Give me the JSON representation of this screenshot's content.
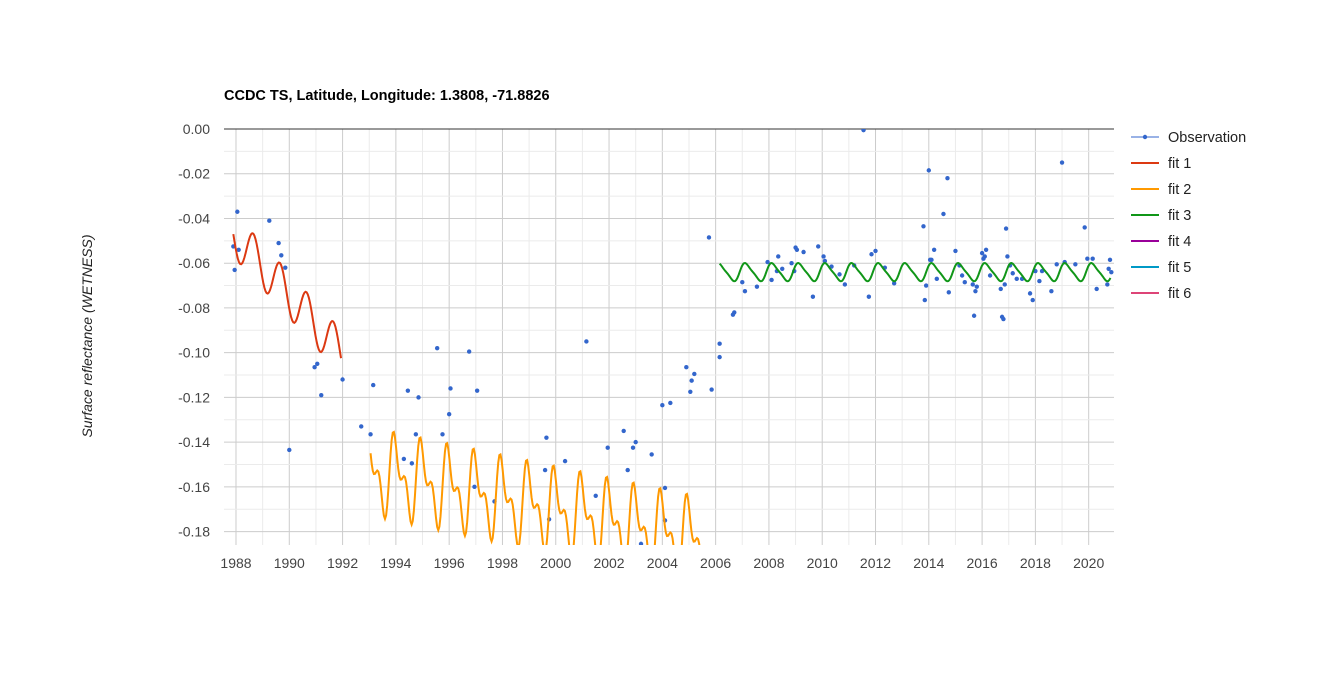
{
  "chart_data": {
    "type": "line",
    "title": "CCDC TS, Latitude, Longitude: 1.3808, -71.8826",
    "xlabel": "",
    "ylabel": "Surface reflectance (WETNESS)",
    "xlim": [
      1987.55,
      2020.95
    ],
    "ylim": [
      -0.186,
      0.0
    ],
    "x_ticks": [
      "1988",
      "1990",
      "1992",
      "1994",
      "1996",
      "1998",
      "2000",
      "2002",
      "2004",
      "2006",
      "2008",
      "2010",
      "2012",
      "2014",
      "2016",
      "2018",
      "2020"
    ],
    "y_ticks": [
      "0.00",
      "-0.02",
      "-0.04",
      "-0.06",
      "-0.08",
      "-0.10",
      "-0.12",
      "-0.14",
      "-0.16",
      "-0.18"
    ],
    "grid": true,
    "legend_position": "right",
    "series": [
      {
        "name": "Observation",
        "kind": "points",
        "color": "#3366cc",
        "points": [
          [
            1987.9,
            -0.0525
          ],
          [
            1987.95,
            -0.063
          ],
          [
            1988.05,
            -0.037
          ],
          [
            1988.1,
            -0.054
          ],
          [
            1989.25,
            -0.041
          ],
          [
            1989.6,
            -0.051
          ],
          [
            1989.7,
            -0.0565
          ],
          [
            1989.85,
            -0.062
          ],
          [
            1990.0,
            -0.1435
          ],
          [
            1990.95,
            -0.1065
          ],
          [
            1991.05,
            -0.105
          ],
          [
            1991.2,
            -0.119
          ],
          [
            1992.0,
            -0.112
          ],
          [
            1992.7,
            -0.133
          ],
          [
            1993.05,
            -0.1365
          ],
          [
            1993.15,
            -0.1145
          ],
          [
            1994.3,
            -0.1475
          ],
          [
            1994.45,
            -0.117
          ],
          [
            1994.6,
            -0.1495
          ],
          [
            1994.75,
            -0.1365
          ],
          [
            1994.85,
            -0.12
          ],
          [
            1995.55,
            -0.098
          ],
          [
            1995.75,
            -0.1365
          ],
          [
            1996.0,
            -0.1275
          ],
          [
            1996.05,
            -0.116
          ],
          [
            1996.75,
            -0.0995
          ],
          [
            1997.05,
            -0.117
          ],
          [
            1996.95,
            -0.16
          ],
          [
            1997.7,
            -0.1665
          ],
          [
            1999.65,
            -0.138
          ],
          [
            1999.6,
            -0.1525
          ],
          [
            1999.75,
            -0.1745
          ],
          [
            2000.35,
            -0.1485
          ],
          [
            2001.15,
            -0.095
          ],
          [
            2001.5,
            -0.164
          ],
          [
            2001.95,
            -0.1425
          ],
          [
            2002.55,
            -0.135
          ],
          [
            2002.7,
            -0.1525
          ],
          [
            2002.9,
            -0.1425
          ],
          [
            2003.0,
            -0.14
          ],
          [
            2003.2,
            -0.1855
          ],
          [
            2003.6,
            -0.1455
          ],
          [
            2004.0,
            -0.1235
          ],
          [
            2004.1,
            -0.1605
          ],
          [
            2004.1,
            -0.175
          ],
          [
            2004.3,
            -0.1225
          ],
          [
            2004.9,
            -0.1065
          ],
          [
            2005.05,
            -0.1175
          ],
          [
            2005.1,
            -0.1125
          ],
          [
            2005.2,
            -0.1095
          ],
          [
            2005.75,
            -0.0485
          ],
          [
            2005.85,
            -0.1165
          ],
          [
            2006.15,
            -0.096
          ],
          [
            2006.15,
            -0.102
          ],
          [
            2006.65,
            -0.083
          ],
          [
            2006.7,
            -0.082
          ],
          [
            2007.0,
            -0.0685
          ],
          [
            2007.1,
            -0.0725
          ],
          [
            2007.55,
            -0.0705
          ],
          [
            2007.95,
            -0.0595
          ],
          [
            2008.1,
            -0.0675
          ],
          [
            2008.3,
            -0.0635
          ],
          [
            2008.35,
            -0.057
          ],
          [
            2008.5,
            -0.0625
          ],
          [
            2008.85,
            -0.06
          ],
          [
            2008.95,
            -0.0635
          ],
          [
            2009.0,
            -0.053
          ],
          [
            2009.05,
            -0.054
          ],
          [
            2009.3,
            -0.055
          ],
          [
            2009.65,
            -0.075
          ],
          [
            2009.85,
            -0.0525
          ],
          [
            2010.05,
            -0.057
          ],
          [
            2010.1,
            -0.059
          ],
          [
            2010.35,
            -0.0615
          ],
          [
            2010.65,
            -0.065
          ],
          [
            2010.85,
            -0.0695
          ],
          [
            2011.2,
            -0.061
          ],
          [
            2011.55,
            -0.0005
          ],
          [
            2011.75,
            -0.075
          ],
          [
            2011.85,
            -0.056
          ],
          [
            2012.0,
            -0.0545
          ],
          [
            2012.35,
            -0.062
          ],
          [
            2012.7,
            -0.069
          ],
          [
            2013.8,
            -0.0435
          ],
          [
            2013.85,
            -0.0765
          ],
          [
            2013.9,
            -0.07
          ],
          [
            2014.0,
            -0.0185
          ],
          [
            2014.05,
            -0.0585
          ],
          [
            2014.1,
            -0.0585
          ],
          [
            2014.2,
            -0.054
          ],
          [
            2014.3,
            -0.067
          ],
          [
            2014.55,
            -0.038
          ],
          [
            2014.7,
            -0.022
          ],
          [
            2014.75,
            -0.073
          ],
          [
            2015.0,
            -0.0545
          ],
          [
            2015.15,
            -0.061
          ],
          [
            2015.25,
            -0.0655
          ],
          [
            2015.35,
            -0.0685
          ],
          [
            2015.65,
            -0.0695
          ],
          [
            2015.7,
            -0.0835
          ],
          [
            2015.75,
            -0.0725
          ],
          [
            2015.8,
            -0.0705
          ],
          [
            2016.0,
            -0.0555
          ],
          [
            2016.05,
            -0.058
          ],
          [
            2016.1,
            -0.057
          ],
          [
            2016.15,
            -0.054
          ],
          [
            2016.3,
            -0.0655
          ],
          [
            2016.7,
            -0.0715
          ],
          [
            2016.75,
            -0.084
          ],
          [
            2016.8,
            -0.085
          ],
          [
            2016.85,
            -0.0695
          ],
          [
            2016.9,
            -0.0445
          ],
          [
            2016.95,
            -0.057
          ],
          [
            2017.05,
            -0.061
          ],
          [
            2017.15,
            -0.0645
          ],
          [
            2017.3,
            -0.067
          ],
          [
            2017.5,
            -0.067
          ],
          [
            2017.8,
            -0.0735
          ],
          [
            2017.9,
            -0.0765
          ],
          [
            2018.0,
            -0.0635
          ],
          [
            2018.15,
            -0.068
          ],
          [
            2018.25,
            -0.0635
          ],
          [
            2018.6,
            -0.0725
          ],
          [
            2018.8,
            -0.0605
          ],
          [
            2019.0,
            -0.015
          ],
          [
            2019.1,
            -0.0595
          ],
          [
            2019.5,
            -0.0605
          ],
          [
            2019.85,
            -0.044
          ],
          [
            2019.95,
            -0.058
          ],
          [
            2020.15,
            -0.058
          ],
          [
            2020.3,
            -0.0715
          ],
          [
            2020.7,
            -0.0695
          ],
          [
            2020.75,
            -0.0625
          ],
          [
            2020.8,
            -0.0585
          ],
          [
            2020.85,
            -0.064
          ]
        ]
      },
      {
        "name": "fit 1",
        "kind": "harmonic",
        "color": "#dc3912",
        "x_start": 1987.9,
        "x_end": 1991.95,
        "trend_start": -0.047,
        "trend_end": -0.1,
        "amplitude": 0.01,
        "phase": 0.6
      },
      {
        "name": "fit 2",
        "kind": "harmonic",
        "color": "#ff9900",
        "x_start": 1993.05,
        "x_end": 2005.75,
        "trend_start": -0.153,
        "trend_end": -0.185,
        "amplitude": 0.014,
        "phase": 0.25,
        "sub_annual": 0.009
      },
      {
        "name": "fit 3",
        "kind": "harmonic",
        "color": "#109618",
        "x_start": 2006.15,
        "x_end": 2020.85,
        "trend_start": -0.064,
        "trend_end": -0.064,
        "amplitude": 0.0038,
        "phase": 0.1,
        "sub_annual": 0.0008
      },
      {
        "name": "fit 4",
        "kind": "legend-only",
        "color": "#990099"
      },
      {
        "name": "fit 5",
        "kind": "legend-only",
        "color": "#0099c6"
      },
      {
        "name": "fit 6",
        "kind": "legend-only",
        "color": "#dd4477"
      }
    ]
  }
}
